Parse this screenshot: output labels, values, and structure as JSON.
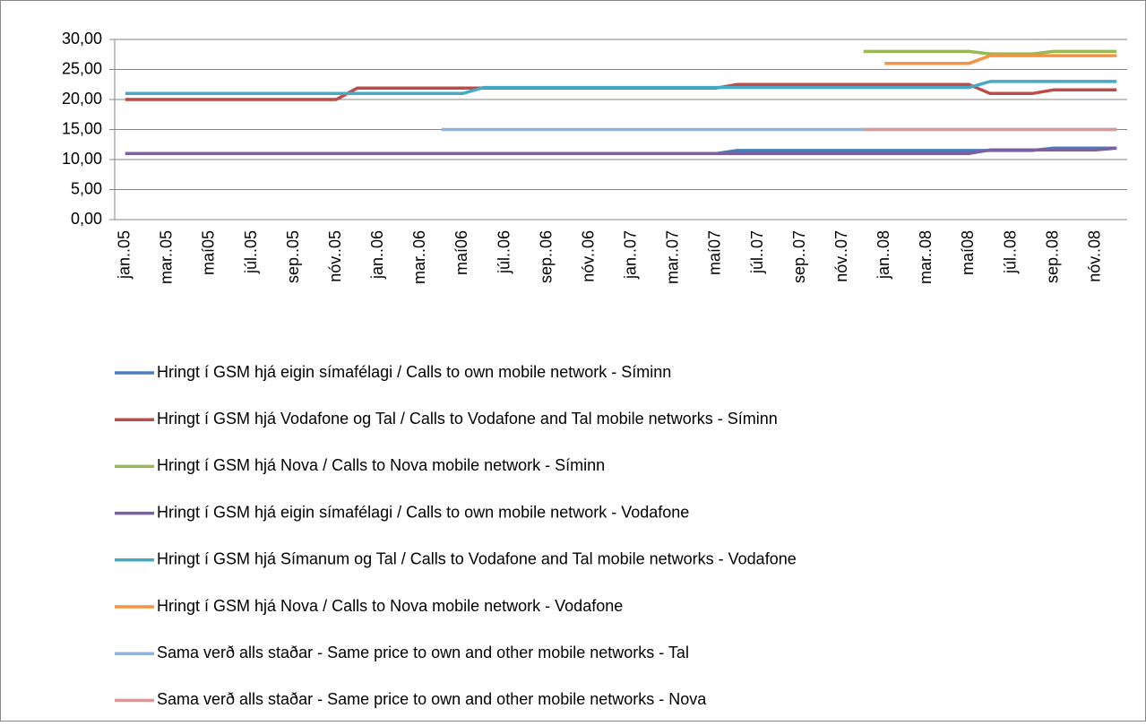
{
  "chart_data": {
    "type": "line",
    "categories": [
      "jan..05",
      null,
      "mar..05",
      null,
      "maí05",
      null,
      "júl..05",
      null,
      "sep..05",
      null,
      "nóv..05",
      null,
      "jan..06",
      null,
      "mar..06",
      null,
      "maí06",
      null,
      "júl..06",
      null,
      "sep..06",
      null,
      "nóv..06",
      null,
      "jan..07",
      null,
      "mar..07",
      null,
      "maí07",
      null,
      "júl..07",
      null,
      "sep..07",
      null,
      "nóv..07",
      null,
      "jan..08",
      null,
      "mar..08",
      null,
      "maí08",
      null,
      "júl..08",
      null,
      "sep..08",
      null,
      "nóv..08",
      null
    ],
    "series": [
      {
        "name": "Hringt í GSM hjá eigin símafélagi / Calls to own mobile network - Síminn",
        "color": "#4a7ebb",
        "values": [
          11,
          11,
          11,
          11,
          11,
          11,
          11,
          11,
          11,
          11,
          11,
          11,
          11,
          11,
          11,
          11,
          11,
          11,
          11,
          11,
          11,
          11,
          11,
          11,
          11,
          11,
          11,
          11,
          11,
          11.5,
          11.5,
          11.5,
          11.5,
          11.5,
          11.5,
          11.5,
          11.5,
          11.5,
          11.5,
          11.5,
          11.5,
          11.5,
          11.5,
          11.5,
          11.9,
          11.9,
          11.9,
          11.9
        ]
      },
      {
        "name": "Hringt í GSM hjá Vodafone og Tal / Calls to Vodafone and Tal mobile networks - Síminn",
        "color": "#be4b48",
        "values": [
          20,
          20,
          20,
          20,
          20,
          20,
          20,
          20,
          20,
          20,
          20,
          21.9,
          21.9,
          21.9,
          21.9,
          21.9,
          21.9,
          21.9,
          21.9,
          21.9,
          21.9,
          21.9,
          21.9,
          21.9,
          21.9,
          21.9,
          21.9,
          21.9,
          21.9,
          22.5,
          22.5,
          22.5,
          22.5,
          22.5,
          22.5,
          22.5,
          22.5,
          22.5,
          22.5,
          22.5,
          22.5,
          21,
          21,
          21,
          21.6,
          21.6,
          21.6,
          21.6
        ]
      },
      {
        "name": "Hringt í GSM hjá Nova / Calls to Nova mobile network - Síminn",
        "color": "#98b954",
        "values": [
          null,
          null,
          null,
          null,
          null,
          null,
          null,
          null,
          null,
          null,
          null,
          null,
          null,
          null,
          null,
          null,
          null,
          null,
          null,
          null,
          null,
          null,
          null,
          null,
          null,
          null,
          null,
          null,
          null,
          null,
          null,
          null,
          null,
          null,
          null,
          28,
          28,
          28,
          28,
          28,
          28,
          27.6,
          27.6,
          27.6,
          28,
          28,
          28,
          28
        ]
      },
      {
        "name": "Hringt í GSM hjá eigin símafélagi / Calls to own mobile network - Vodafone",
        "color": "#7d60a0",
        "values": [
          11,
          11,
          11,
          11,
          11,
          11,
          11,
          11,
          11,
          11,
          11,
          11,
          11,
          11,
          11,
          11,
          11,
          11,
          11,
          11,
          11,
          11,
          11,
          11,
          11,
          11,
          11,
          11,
          11,
          11,
          11,
          11,
          11,
          11,
          11,
          11,
          11,
          11,
          11,
          11,
          11,
          11.6,
          11.6,
          11.6,
          11.6,
          11.6,
          11.6,
          11.9
        ]
      },
      {
        "name": "Hringt í GSM hjá Símanum og Tal / Calls to Vodafone and Tal mobile networks - Vodafone",
        "color": "#46aac5",
        "values": [
          21,
          21,
          21,
          21,
          21,
          21,
          21,
          21,
          21,
          21,
          21,
          21,
          21,
          21,
          21,
          21,
          21,
          22,
          22,
          22,
          22,
          22,
          22,
          22,
          22,
          22,
          22,
          22,
          22,
          22,
          22,
          22,
          22,
          22,
          22,
          22,
          22,
          22,
          22,
          22,
          22,
          23,
          23,
          23,
          23,
          23,
          23,
          23
        ]
      },
      {
        "name": "Hringt í GSM hjá Nova / Calls to Nova mobile network - Vodafone",
        "color": "#f69240",
        "values": [
          null,
          null,
          null,
          null,
          null,
          null,
          null,
          null,
          null,
          null,
          null,
          null,
          null,
          null,
          null,
          null,
          null,
          null,
          null,
          null,
          null,
          null,
          null,
          null,
          null,
          null,
          null,
          null,
          null,
          null,
          null,
          null,
          null,
          null,
          null,
          null,
          26,
          26,
          26,
          26,
          26,
          27.3,
          27.3,
          27.3,
          27.3,
          27.3,
          27.3,
          27.3
        ]
      },
      {
        "name": "Sama verð alls staðar - Same price to own and other mobile networks - Tal",
        "color": "#8eb3de",
        "values": [
          null,
          null,
          null,
          null,
          null,
          null,
          null,
          null,
          null,
          null,
          null,
          null,
          null,
          null,
          null,
          15,
          15,
          15,
          15,
          15,
          15,
          15,
          15,
          15,
          15,
          15,
          15,
          15,
          15,
          15,
          15,
          15,
          15,
          15,
          15,
          15,
          15,
          15,
          15,
          15,
          15,
          15,
          15,
          15,
          15,
          15,
          15,
          15
        ]
      },
      {
        "name": "Sama verð alls staðar - Same price to own and other mobile networks - Nova",
        "color": "#dd9896",
        "values": [
          null,
          null,
          null,
          null,
          null,
          null,
          null,
          null,
          null,
          null,
          null,
          null,
          null,
          null,
          null,
          null,
          null,
          null,
          null,
          null,
          null,
          null,
          null,
          null,
          null,
          null,
          null,
          null,
          null,
          null,
          null,
          null,
          null,
          null,
          null,
          15,
          15,
          15,
          15,
          15,
          15,
          15,
          15,
          15,
          15,
          15,
          15,
          15
        ]
      }
    ],
    "ylim": [
      0,
      30
    ],
    "yticks": [
      {
        "value": 0,
        "label": "0,00"
      },
      {
        "value": 5,
        "label": "5,00"
      },
      {
        "value": 10,
        "label": "10,00"
      },
      {
        "value": 15,
        "label": "15,00"
      },
      {
        "value": 20,
        "label": "20,00"
      },
      {
        "value": 25,
        "label": "25,00"
      },
      {
        "value": 30,
        "label": "30,00"
      }
    ],
    "grid": true,
    "legend": "bottom"
  }
}
